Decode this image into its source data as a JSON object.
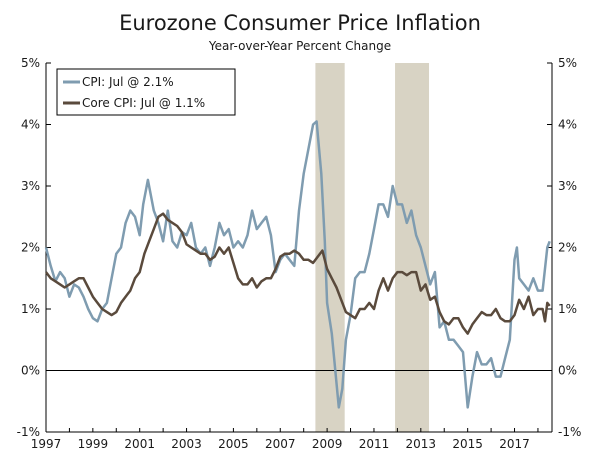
{
  "chart_data": {
    "type": "line",
    "title": "Eurozone Consumer Price Inflation",
    "subtitle": "Year-over-Year Percent Change",
    "xlabel": "",
    "ylabel": "",
    "xlim": [
      1997.0,
      2018.6
    ],
    "ylim": [
      -1,
      5
    ],
    "x_ticks": [
      1997,
      1999,
      2001,
      2003,
      2005,
      2007,
      2009,
      2011,
      2013,
      2015,
      2017
    ],
    "y_ticks": [
      -1,
      0,
      1,
      2,
      3,
      4,
      5
    ],
    "y_tick_labels": [
      "-1%",
      "0%",
      "1%",
      "2%",
      "3%",
      "4%",
      "5%"
    ],
    "recessions": [
      {
        "start": 2008.5,
        "end": 2009.75
      },
      {
        "start": 2011.9,
        "end": 2013.35
      }
    ],
    "legend": {
      "placement": "top-left",
      "entries": [
        "CPI: Jul @ 2.1%",
        "Core CPI: Jul @ 1.1%"
      ]
    },
    "colors": {
      "cpi": "#7f9cb0",
      "core": "#5a4a3c",
      "recession": "#d8d3c4",
      "axis": "#000000"
    },
    "series": [
      {
        "name": "CPI",
        "points": [
          [
            1997.0,
            2.0
          ],
          [
            1997.2,
            1.7
          ],
          [
            1997.4,
            1.45
          ],
          [
            1997.6,
            1.6
          ],
          [
            1997.8,
            1.5
          ],
          [
            1998.0,
            1.2
          ],
          [
            1998.2,
            1.4
          ],
          [
            1998.4,
            1.35
          ],
          [
            1998.6,
            1.2
          ],
          [
            1998.8,
            1.0
          ],
          [
            1999.0,
            0.85
          ],
          [
            1999.2,
            0.8
          ],
          [
            1999.4,
            1.0
          ],
          [
            1999.6,
            1.1
          ],
          [
            1999.8,
            1.5
          ],
          [
            2000.0,
            1.9
          ],
          [
            2000.2,
            2.0
          ],
          [
            2000.4,
            2.4
          ],
          [
            2000.6,
            2.6
          ],
          [
            2000.8,
            2.5
          ],
          [
            2001.0,
            2.2
          ],
          [
            2001.15,
            2.7
          ],
          [
            2001.35,
            3.1
          ],
          [
            2001.6,
            2.6
          ],
          [
            2001.8,
            2.4
          ],
          [
            2002.0,
            2.1
          ],
          [
            2002.2,
            2.6
          ],
          [
            2002.4,
            2.1
          ],
          [
            2002.6,
            2.0
          ],
          [
            2002.8,
            2.25
          ],
          [
            2003.0,
            2.2
          ],
          [
            2003.2,
            2.4
          ],
          [
            2003.4,
            2.0
          ],
          [
            2003.6,
            1.9
          ],
          [
            2003.8,
            2.0
          ],
          [
            2004.0,
            1.7
          ],
          [
            2004.2,
            2.0
          ],
          [
            2004.4,
            2.4
          ],
          [
            2004.6,
            2.2
          ],
          [
            2004.8,
            2.3
          ],
          [
            2005.0,
            2.0
          ],
          [
            2005.2,
            2.1
          ],
          [
            2005.4,
            2.0
          ],
          [
            2005.6,
            2.2
          ],
          [
            2005.8,
            2.6
          ],
          [
            2006.0,
            2.3
          ],
          [
            2006.2,
            2.4
          ],
          [
            2006.4,
            2.5
          ],
          [
            2006.6,
            2.2
          ],
          [
            2006.8,
            1.6
          ],
          [
            2007.0,
            1.8
          ],
          [
            2007.2,
            1.9
          ],
          [
            2007.4,
            1.8
          ],
          [
            2007.6,
            1.7
          ],
          [
            2007.8,
            2.6
          ],
          [
            2008.0,
            3.2
          ],
          [
            2008.2,
            3.6
          ],
          [
            2008.4,
            4.0
          ],
          [
            2008.55,
            4.05
          ],
          [
            2008.75,
            3.2
          ],
          [
            2008.9,
            2.1
          ],
          [
            2009.0,
            1.1
          ],
          [
            2009.2,
            0.6
          ],
          [
            2009.35,
            0.0
          ],
          [
            2009.5,
            -0.6
          ],
          [
            2009.65,
            -0.3
          ],
          [
            2009.8,
            0.5
          ],
          [
            2010.0,
            0.9
          ],
          [
            2010.2,
            1.5
          ],
          [
            2010.4,
            1.6
          ],
          [
            2010.6,
            1.6
          ],
          [
            2010.8,
            1.9
          ],
          [
            2011.0,
            2.3
          ],
          [
            2011.2,
            2.7
          ],
          [
            2011.4,
            2.7
          ],
          [
            2011.6,
            2.5
          ],
          [
            2011.8,
            3.0
          ],
          [
            2012.0,
            2.7
          ],
          [
            2012.2,
            2.7
          ],
          [
            2012.4,
            2.4
          ],
          [
            2012.6,
            2.6
          ],
          [
            2012.8,
            2.2
          ],
          [
            2013.0,
            2.0
          ],
          [
            2013.2,
            1.7
          ],
          [
            2013.4,
            1.4
          ],
          [
            2013.6,
            1.6
          ],
          [
            2013.8,
            0.7
          ],
          [
            2014.0,
            0.8
          ],
          [
            2014.2,
            0.5
          ],
          [
            2014.4,
            0.5
          ],
          [
            2014.6,
            0.4
          ],
          [
            2014.8,
            0.3
          ],
          [
            2015.0,
            -0.6
          ],
          [
            2015.2,
            -0.1
          ],
          [
            2015.4,
            0.3
          ],
          [
            2015.6,
            0.1
          ],
          [
            2015.8,
            0.1
          ],
          [
            2016.0,
            0.2
          ],
          [
            2016.2,
            -0.1
          ],
          [
            2016.4,
            -0.1
          ],
          [
            2016.6,
            0.2
          ],
          [
            2016.8,
            0.5
          ],
          [
            2017.0,
            1.8
          ],
          [
            2017.1,
            2.0
          ],
          [
            2017.2,
            1.5
          ],
          [
            2017.4,
            1.4
          ],
          [
            2017.6,
            1.3
          ],
          [
            2017.8,
            1.5
          ],
          [
            2018.0,
            1.3
          ],
          [
            2018.2,
            1.3
          ],
          [
            2018.4,
            2.0
          ],
          [
            2018.5,
            2.1
          ]
        ]
      },
      {
        "name": "Core CPI",
        "points": [
          [
            1997.0,
            1.6
          ],
          [
            1997.2,
            1.5
          ],
          [
            1997.4,
            1.45
          ],
          [
            1997.6,
            1.4
          ],
          [
            1997.8,
            1.35
          ],
          [
            1998.0,
            1.4
          ],
          [
            1998.2,
            1.45
          ],
          [
            1998.4,
            1.5
          ],
          [
            1998.6,
            1.5
          ],
          [
            1998.8,
            1.35
          ],
          [
            1999.0,
            1.2
          ],
          [
            1999.2,
            1.1
          ],
          [
            1999.4,
            1.0
          ],
          [
            1999.6,
            0.95
          ],
          [
            1999.8,
            0.9
          ],
          [
            2000.0,
            0.95
          ],
          [
            2000.2,
            1.1
          ],
          [
            2000.4,
            1.2
          ],
          [
            2000.6,
            1.3
          ],
          [
            2000.8,
            1.5
          ],
          [
            2001.0,
            1.6
          ],
          [
            2001.2,
            1.9
          ],
          [
            2001.4,
            2.1
          ],
          [
            2001.6,
            2.3
          ],
          [
            2001.8,
            2.5
          ],
          [
            2002.0,
            2.55
          ],
          [
            2002.2,
            2.45
          ],
          [
            2002.4,
            2.4
          ],
          [
            2002.6,
            2.35
          ],
          [
            2002.8,
            2.25
          ],
          [
            2003.0,
            2.05
          ],
          [
            2003.2,
            2.0
          ],
          [
            2003.4,
            1.95
          ],
          [
            2003.6,
            1.9
          ],
          [
            2003.8,
            1.9
          ],
          [
            2004.0,
            1.8
          ],
          [
            2004.2,
            1.85
          ],
          [
            2004.4,
            2.0
          ],
          [
            2004.6,
            1.9
          ],
          [
            2004.8,
            2.0
          ],
          [
            2005.0,
            1.75
          ],
          [
            2005.2,
            1.5
          ],
          [
            2005.4,
            1.4
          ],
          [
            2005.6,
            1.4
          ],
          [
            2005.8,
            1.5
          ],
          [
            2006.0,
            1.35
          ],
          [
            2006.2,
            1.45
          ],
          [
            2006.4,
            1.5
          ],
          [
            2006.6,
            1.5
          ],
          [
            2006.8,
            1.65
          ],
          [
            2007.0,
            1.85
          ],
          [
            2007.2,
            1.9
          ],
          [
            2007.4,
            1.9
          ],
          [
            2007.6,
            1.95
          ],
          [
            2007.8,
            1.9
          ],
          [
            2008.0,
            1.8
          ],
          [
            2008.2,
            1.8
          ],
          [
            2008.4,
            1.75
          ],
          [
            2008.6,
            1.85
          ],
          [
            2008.8,
            1.95
          ],
          [
            2009.0,
            1.65
          ],
          [
            2009.2,
            1.5
          ],
          [
            2009.4,
            1.35
          ],
          [
            2009.6,
            1.15
          ],
          [
            2009.8,
            0.95
          ],
          [
            2010.0,
            0.9
          ],
          [
            2010.2,
            0.85
          ],
          [
            2010.4,
            1.0
          ],
          [
            2010.6,
            1.0
          ],
          [
            2010.8,
            1.1
          ],
          [
            2011.0,
            1.0
          ],
          [
            2011.2,
            1.3
          ],
          [
            2011.4,
            1.5
          ],
          [
            2011.6,
            1.3
          ],
          [
            2011.8,
            1.5
          ],
          [
            2012.0,
            1.6
          ],
          [
            2012.2,
            1.6
          ],
          [
            2012.4,
            1.55
          ],
          [
            2012.6,
            1.6
          ],
          [
            2012.8,
            1.6
          ],
          [
            2013.0,
            1.3
          ],
          [
            2013.2,
            1.4
          ],
          [
            2013.4,
            1.15
          ],
          [
            2013.6,
            1.2
          ],
          [
            2013.8,
            0.95
          ],
          [
            2014.0,
            0.8
          ],
          [
            2014.2,
            0.75
          ],
          [
            2014.4,
            0.85
          ],
          [
            2014.6,
            0.85
          ],
          [
            2014.8,
            0.7
          ],
          [
            2015.0,
            0.6
          ],
          [
            2015.2,
            0.75
          ],
          [
            2015.4,
            0.85
          ],
          [
            2015.6,
            0.95
          ],
          [
            2015.8,
            0.9
          ],
          [
            2016.0,
            0.9
          ],
          [
            2016.2,
            1.0
          ],
          [
            2016.4,
            0.85
          ],
          [
            2016.6,
            0.8
          ],
          [
            2016.8,
            0.8
          ],
          [
            2017.0,
            0.9
          ],
          [
            2017.2,
            1.15
          ],
          [
            2017.4,
            1.0
          ],
          [
            2017.6,
            1.2
          ],
          [
            2017.8,
            0.9
          ],
          [
            2018.0,
            1.0
          ],
          [
            2018.2,
            1.0
          ],
          [
            2018.3,
            0.8
          ],
          [
            2018.4,
            1.1
          ],
          [
            2018.5,
            1.05
          ]
        ]
      }
    ]
  }
}
